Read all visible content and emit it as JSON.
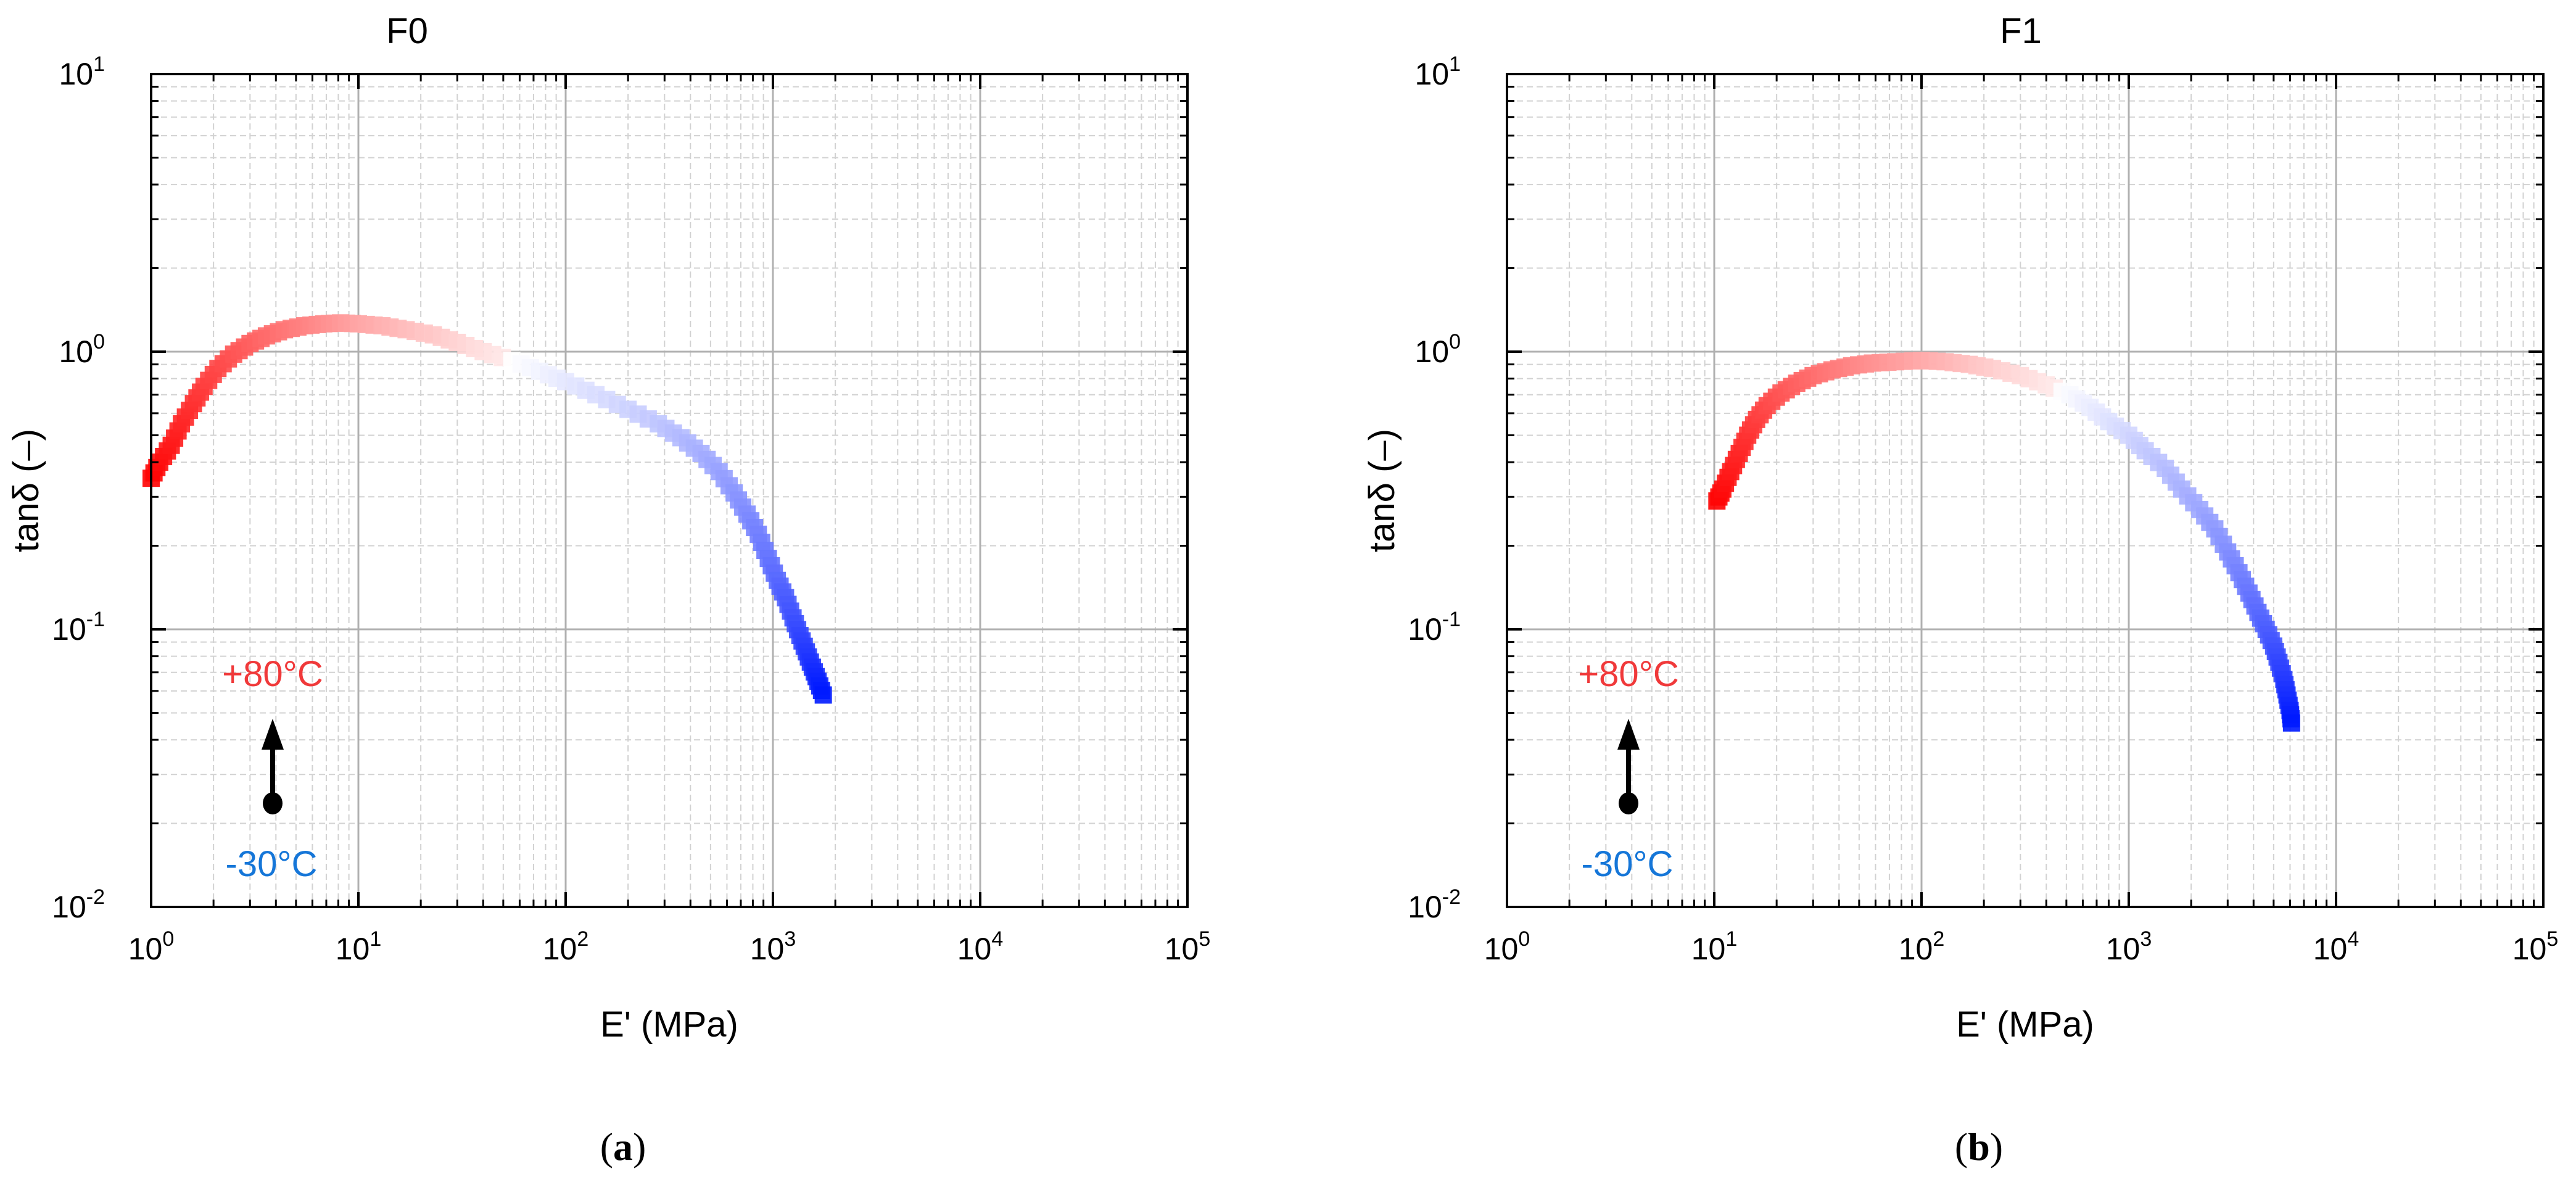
{
  "colors": {
    "hot": "#ff0000",
    "cold": "#0019ff",
    "mid": "#ffffff",
    "hot_label": "#f0393a",
    "cold_label": "#1576d8",
    "major_grid": "#b0b0b0",
    "minor_grid": "#d2d2d2",
    "axis": "#000000",
    "arrow": "#000000"
  },
  "chart_data": [
    {
      "type": "scatter",
      "title": "F0",
      "xlabel": "E' (MPa)",
      "ylabel": "tanδ (–)",
      "x_scale": "log",
      "y_scale": "log",
      "xlim": [
        1,
        100000
      ],
      "ylim": [
        0.01,
        10
      ],
      "x_ticks": [
        {
          "value": 1,
          "base": "10",
          "exp": "0"
        },
        {
          "value": 10,
          "base": "10",
          "exp": "1"
        },
        {
          "value": 100,
          "base": "10",
          "exp": "2"
        },
        {
          "value": 1000,
          "base": "10",
          "exp": "3"
        },
        {
          "value": 10000,
          "base": "10",
          "exp": "4"
        },
        {
          "value": 100000,
          "base": "10",
          "exp": "5"
        }
      ],
      "y_ticks": [
        {
          "value": 0.01,
          "base": "10",
          "exp": "-2"
        },
        {
          "value": 0.1,
          "base": "10",
          "exp": "-1"
        },
        {
          "value": 1,
          "base": "10",
          "exp": "0"
        },
        {
          "value": 10,
          "base": "10",
          "exp": "1"
        }
      ],
      "grid": true,
      "marker": "square",
      "color_scale": "temperature: red (+80°C) → white → blue (-30°C)",
      "series": [
        {
          "x": [
            1.0,
            1.1,
            1.25,
            1.4,
            1.6,
            1.8,
            2.1,
            2.5,
            3.0,
            3.6,
            4.4,
            5.5,
            6.8,
            8.2,
            10,
            13,
            17,
            23,
            30,
            40,
            55,
            75,
            100,
            140,
            200,
            280,
            360,
            450,
            550,
            650,
            750,
            850,
            950,
            1050,
            1150,
            1250,
            1350,
            1450,
            1550,
            1650,
            1750
          ],
          "y": [
            0.35,
            0.4,
            0.46,
            0.55,
            0.65,
            0.75,
            0.87,
            0.98,
            1.07,
            1.14,
            1.2,
            1.24,
            1.26,
            1.27,
            1.26,
            1.24,
            1.2,
            1.15,
            1.08,
            1.0,
            0.93,
            0.85,
            0.78,
            0.7,
            0.62,
            0.55,
            0.49,
            0.43,
            0.37,
            0.31,
            0.26,
            0.22,
            0.18,
            0.15,
            0.13,
            0.11,
            0.095,
            0.083,
            0.073,
            0.065,
            0.058
          ]
        }
      ],
      "annotations": {
        "hot_label": "+80°C",
        "cold_label": "-30°C"
      },
      "caption": {
        "open": "(",
        "letter": "a",
        "close": ")"
      }
    },
    {
      "type": "scatter",
      "title": "F1",
      "xlabel": "E' (MPa)",
      "ylabel": "tanδ (–)",
      "x_scale": "log",
      "y_scale": "log",
      "xlim": [
        1,
        100000
      ],
      "ylim": [
        0.01,
        10
      ],
      "x_ticks": [
        {
          "value": 1,
          "base": "10",
          "exp": "0"
        },
        {
          "value": 10,
          "base": "10",
          "exp": "1"
        },
        {
          "value": 100,
          "base": "10",
          "exp": "2"
        },
        {
          "value": 1000,
          "base": "10",
          "exp": "3"
        },
        {
          "value": 10000,
          "base": "10",
          "exp": "4"
        },
        {
          "value": 100000,
          "base": "10",
          "exp": "5"
        }
      ],
      "y_ticks": [
        {
          "value": 0.01,
          "base": "10",
          "exp": "-2"
        },
        {
          "value": 0.1,
          "base": "10",
          "exp": "-1"
        },
        {
          "value": 1,
          "base": "10",
          "exp": "0"
        },
        {
          "value": 10,
          "base": "10",
          "exp": "1"
        }
      ],
      "grid": true,
      "marker": "square",
      "color_scale": "temperature: red (+80°C) → white → blue (-30°C)",
      "series": [
        {
          "x": [
            10.3,
            11,
            12,
            13.2,
            14.5,
            16,
            18,
            21,
            25,
            30,
            37,
            46,
            58,
            75,
            100,
            130,
            170,
            220,
            300,
            400,
            520,
            650,
            800,
            1000,
            1200,
            1500,
            1800,
            2200,
            2600,
            3000,
            3400,
            3800,
            4200,
            4600,
            5000,
            5300,
            5600,
            5800,
            6000,
            6100
          ],
          "y": [
            0.29,
            0.32,
            0.37,
            0.43,
            0.5,
            0.57,
            0.64,
            0.71,
            0.77,
            0.82,
            0.86,
            0.89,
            0.91,
            0.92,
            0.93,
            0.92,
            0.9,
            0.87,
            0.82,
            0.76,
            0.7,
            0.63,
            0.56,
            0.5,
            0.44,
            0.38,
            0.32,
            0.27,
            0.23,
            0.19,
            0.16,
            0.135,
            0.115,
            0.1,
            0.087,
            0.076,
            0.066,
            0.058,
            0.051,
            0.046
          ]
        }
      ],
      "annotations": {
        "hot_label": "+80°C",
        "cold_label": "-30°C"
      },
      "caption": {
        "open": "(",
        "letter": "b",
        "close": ")"
      }
    }
  ]
}
